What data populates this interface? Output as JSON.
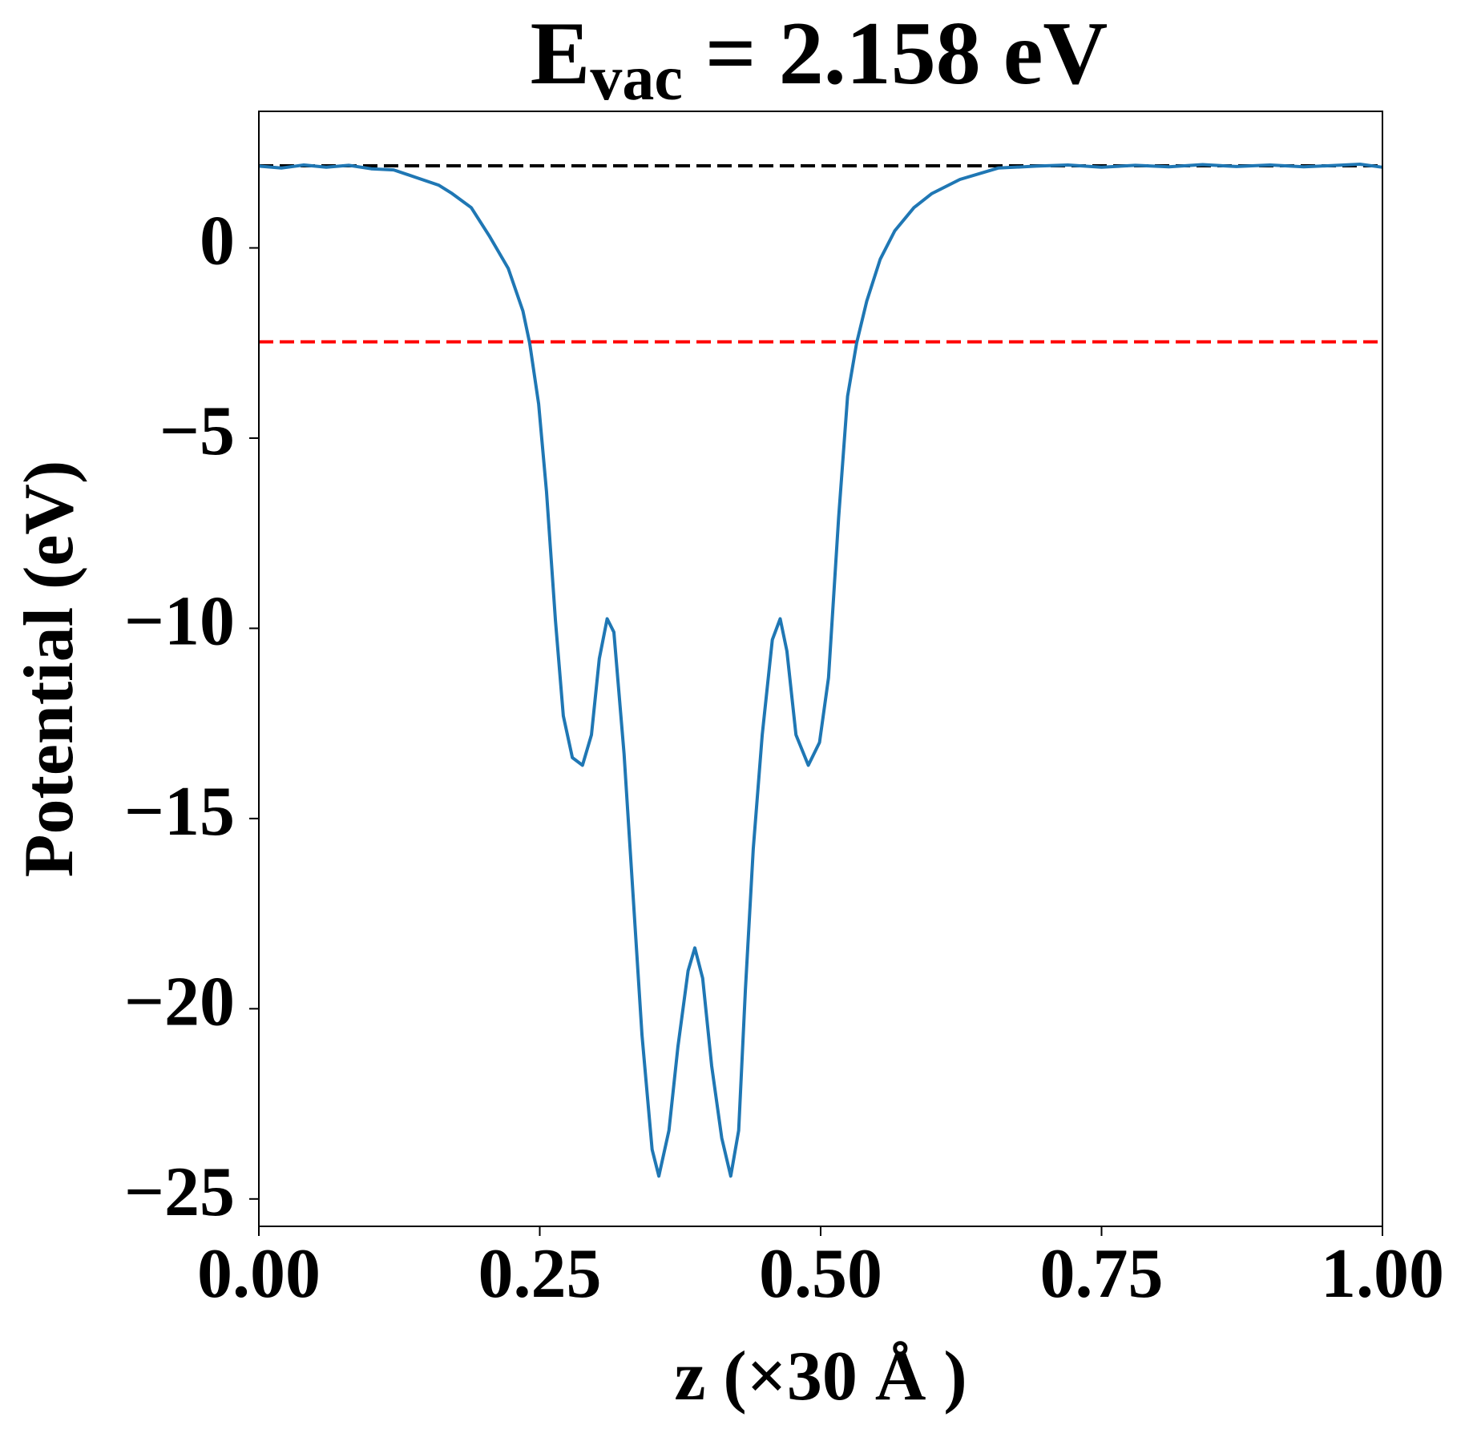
{
  "chart_data": {
    "type": "line",
    "title": "E",
    "title_subscript": "vac",
    "title_rest": " = 2.158 eV",
    "xlabel": "z (×30 Å )",
    "ylabel": "Potential (eV)",
    "xlim": [
      0,
      1
    ],
    "ylim": [
      -25.72,
      3.59
    ],
    "xticks": [
      {
        "value": 0,
        "label": "0.00"
      },
      {
        "value": 0.25,
        "label": "0.25"
      },
      {
        "value": 0.5,
        "label": "0.50"
      },
      {
        "value": 0.75,
        "label": "0.75"
      },
      {
        "value": 1,
        "label": "1.00"
      }
    ],
    "yticks": [
      0,
      {
        "value": -5,
        "label": "−5"
      },
      {
        "value": -10,
        "label": "−10"
      },
      {
        "value": -15,
        "label": "−15"
      },
      {
        "value": -20,
        "label": "−20"
      },
      {
        "value": -25,
        "label": "−25"
      }
    ],
    "hlines": [
      {
        "value": 2.158,
        "color": "#000000"
      },
      {
        "value": -2.47,
        "color": "#ff0000"
      }
    ],
    "series": [
      {
        "color": "#1f77b4",
        "x": [
          0,
          0.02,
          0.04,
          0.06,
          0.08,
          0.1,
          0.12,
          0.14,
          0.16,
          0.172,
          0.189,
          0.205,
          0.222,
          0.235,
          0.241,
          0.249,
          0.256,
          0.264,
          0.271,
          0.279,
          0.288,
          0.296,
          0.303,
          0.31,
          0.316,
          0.325,
          0.333,
          0.341,
          0.35,
          0.356,
          0.365,
          0.373,
          0.382,
          0.388,
          0.395,
          0.403,
          0.412,
          0.42,
          0.427,
          0.433,
          0.44,
          0.448,
          0.457,
          0.464,
          0.47,
          0.478,
          0.489,
          0.499,
          0.507,
          0.516,
          0.524,
          0.532,
          0.541,
          0.553,
          0.566,
          0.583,
          0.599,
          0.624,
          0.658,
          0.692,
          0.72,
          0.75,
          0.78,
          0.81,
          0.84,
          0.87,
          0.9,
          0.93,
          0.96,
          0.98,
          1
        ],
        "values": [
          2.15,
          2.1,
          2.18,
          2.12,
          2.17,
          2.08,
          2.05,
          1.85,
          1.65,
          1.43,
          1.06,
          0.32,
          -0.54,
          -1.66,
          -2.5,
          -4.1,
          -6.4,
          -9.8,
          -12.3,
          -13.4,
          -13.6,
          -12.8,
          -10.8,
          -9.75,
          -10.1,
          -13.3,
          -17.0,
          -20.7,
          -23.7,
          -24.4,
          -23.2,
          -21.0,
          -19.0,
          -18.4,
          -19.2,
          -21.5,
          -23.4,
          -24.4,
          -23.2,
          -19.5,
          -15.8,
          -12.8,
          -10.3,
          -9.75,
          -10.6,
          -12.8,
          -13.6,
          -13.0,
          -11.3,
          -7.1,
          -3.9,
          -2.5,
          -1.4,
          -0.3,
          0.45,
          1.06,
          1.43,
          1.8,
          2.1,
          2.15,
          2.18,
          2.12,
          2.17,
          2.13,
          2.19,
          2.14,
          2.18,
          2.13,
          2.17,
          2.2,
          2.12
        ]
      }
    ]
  }
}
